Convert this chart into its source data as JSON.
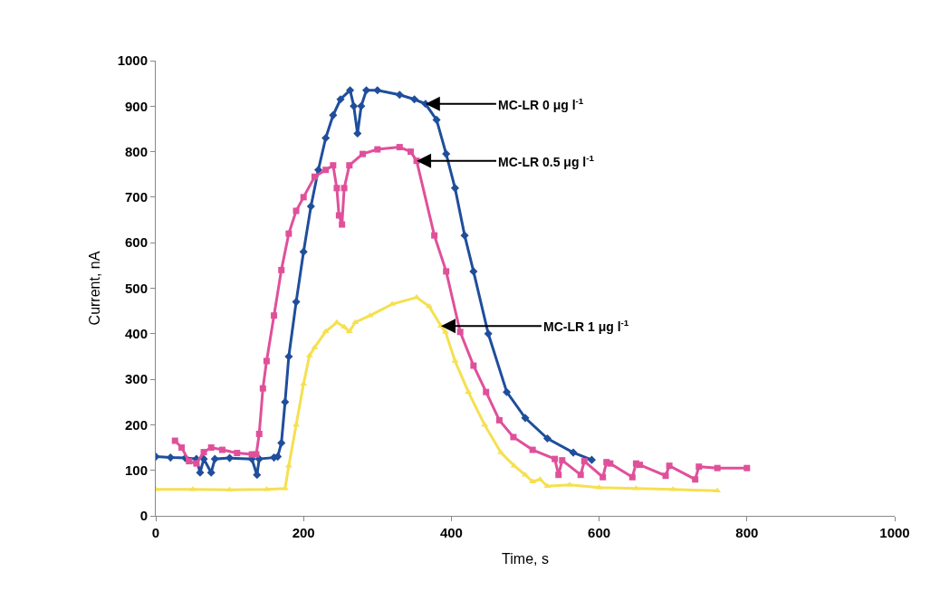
{
  "chart_data": {
    "type": "line",
    "xlabel": "Time, s",
    "ylabel": "Current, nA",
    "xlim": [
      0,
      1000
    ],
    "xticks": [
      0,
      200,
      400,
      600,
      800,
      1000
    ],
    "ylim": [
      0,
      1000
    ],
    "yticks": [
      0,
      100,
      200,
      300,
      400,
      500,
      600,
      700,
      800,
      900,
      1000
    ],
    "series": [
      {
        "color": "#1f4e9c",
        "marker": "diamond",
        "x": [
          0,
          20,
          40,
          55,
          60,
          65,
          75,
          80,
          100,
          130,
          137,
          140,
          160,
          165,
          170,
          175,
          180,
          190,
          200,
          210,
          220,
          230,
          240,
          250,
          263,
          268,
          273,
          278,
          285,
          300,
          330,
          350,
          365,
          380,
          393,
          405,
          418,
          430,
          450,
          475,
          500,
          530,
          565,
          590
        ],
        "values": [
          130,
          128,
          127,
          125,
          95,
          125,
          95,
          125,
          127,
          125,
          90,
          125,
          128,
          130,
          160,
          250,
          350,
          470,
          580,
          680,
          760,
          830,
          880,
          915,
          935,
          900,
          840,
          900,
          935,
          935,
          925,
          915,
          905,
          870,
          795,
          720,
          616,
          537,
          400,
          272,
          215,
          170,
          139,
          123
        ]
      },
      {
        "color": "#e0509a",
        "marker": "square",
        "x": [
          26,
          35,
          45,
          55,
          65,
          75,
          90,
          110,
          130,
          136,
          140,
          145,
          150,
          160,
          170,
          180,
          190,
          200,
          215,
          230,
          240,
          245,
          248,
          252,
          255,
          262,
          280,
          300,
          330,
          345,
          353,
          377,
          393,
          412,
          430,
          447,
          465,
          484,
          510,
          540,
          545,
          550,
          575,
          580,
          605,
          610,
          615,
          645,
          650,
          655,
          690,
          695,
          730,
          735,
          760,
          800
        ],
        "values": [
          165,
          150,
          120,
          115,
          140,
          150,
          145,
          138,
          135,
          135,
          180,
          280,
          340,
          440,
          540,
          620,
          670,
          700,
          745,
          760,
          770,
          720,
          660,
          640,
          720,
          770,
          795,
          805,
          810,
          800,
          780,
          616,
          537,
          404,
          330,
          272,
          210,
          173,
          145,
          125,
          90,
          122,
          90,
          120,
          85,
          118,
          115,
          85,
          115,
          112,
          88,
          110,
          80,
          108,
          105,
          105
        ]
      },
      {
        "color": "#f5e050",
        "marker": "triangle",
        "x": [
          0,
          50,
          100,
          150,
          175,
          180,
          190,
          200,
          208,
          215,
          230,
          245,
          255,
          262,
          270,
          290,
          320,
          353,
          370,
          386,
          392,
          405,
          423,
          445,
          467,
          485,
          500,
          510,
          520,
          530,
          560,
          600,
          650,
          700,
          760
        ],
        "values": [
          58,
          58,
          57,
          58,
          60,
          110,
          200,
          290,
          352,
          370,
          405,
          425,
          415,
          405,
          425,
          440,
          465,
          480,
          460,
          417,
          404,
          340,
          272,
          200,
          139,
          110,
          90,
          75,
          80,
          65,
          68,
          62,
          60,
          58,
          55
        ]
      }
    ],
    "annotations": [
      {
        "text": "MC-LR 0 μg l$^{-1}$",
        "x": 365,
        "y": 905
      },
      {
        "text": "MC-LR 0.5 μg l$^{-1}$",
        "x": 353,
        "y": 780
      },
      {
        "text": "MC-LR 1 μg l$^{-1}$",
        "x": 386,
        "y": 417
      }
    ]
  }
}
